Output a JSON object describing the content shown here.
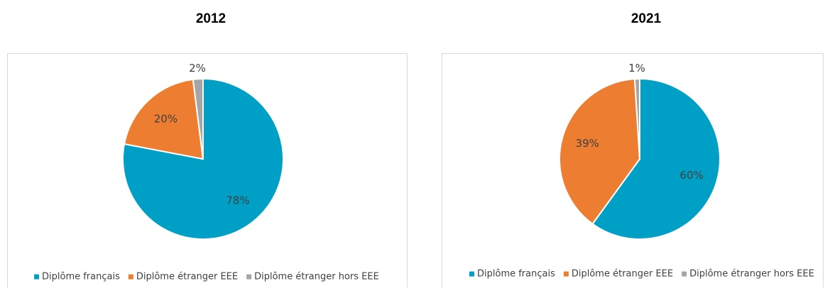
{
  "chart_data": [
    {
      "type": "pie",
      "title": "2012",
      "categories": [
        "Diplôme français",
        "Diplôme étranger EEE",
        "Diplôme étranger hors EEE"
      ],
      "values": [
        78,
        20,
        2
      ],
      "value_labels": [
        "78%",
        "20%",
        "2%"
      ],
      "colors": [
        "#00a0c6",
        "#ed7d31",
        "#a5a5a5"
      ],
      "legend": "bottom"
    },
    {
      "type": "pie",
      "title": "2021",
      "categories": [
        "Diplôme français",
        "Diplôme étranger EEE",
        "Diplôme étranger hors EEE"
      ],
      "values": [
        60,
        39,
        1
      ],
      "value_labels": [
        "60%",
        "39%",
        "1%"
      ],
      "colors": [
        "#00a0c6",
        "#ed7d31",
        "#a5a5a5"
      ],
      "legend": "bottom"
    }
  ]
}
